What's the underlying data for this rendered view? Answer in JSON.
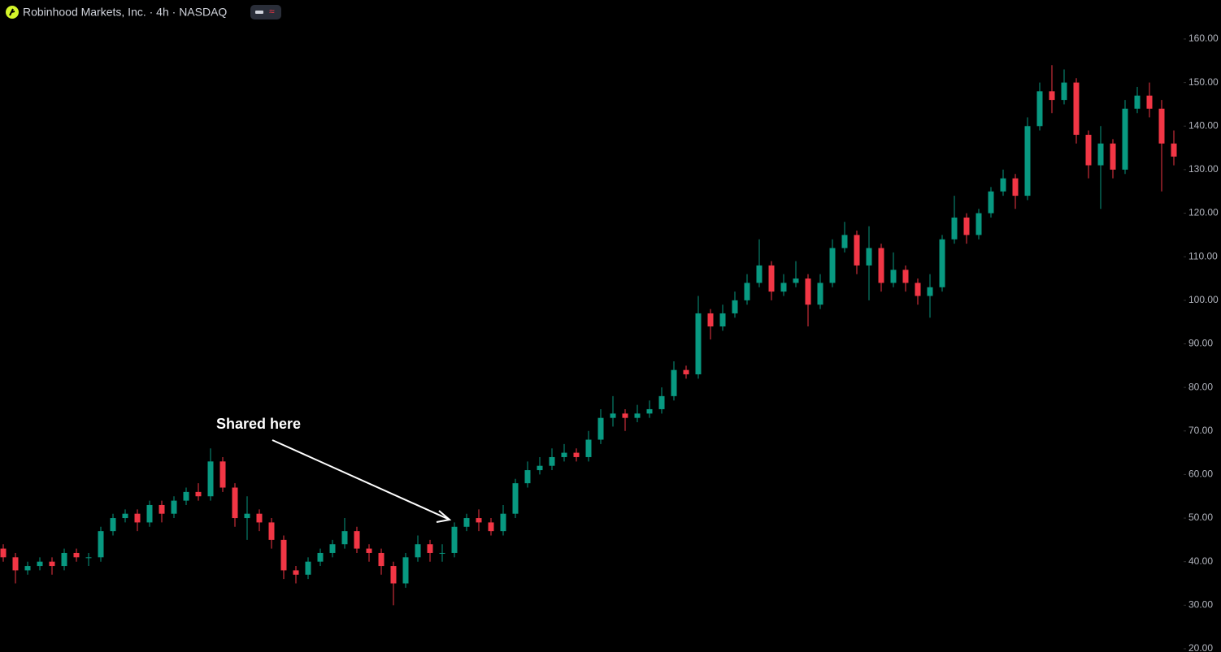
{
  "chart_data": {
    "type": "candlestick",
    "title": "Robinhood Markets, Inc. · 4h · NASDAQ",
    "annotation": "Shared here",
    "up_color": "#089981",
    "down_color": "#f23645",
    "ylim": [
      19.25,
      168.95
    ],
    "yticks": [
      {
        "value": 20,
        "label": "20.00"
      },
      {
        "value": 30,
        "label": "30.00"
      },
      {
        "value": 40,
        "label": "40.00"
      },
      {
        "value": 50,
        "label": "50.00"
      },
      {
        "value": 60,
        "label": "60.00"
      },
      {
        "value": 70,
        "label": "70.00"
      },
      {
        "value": 80,
        "label": "80.00"
      },
      {
        "value": 90,
        "label": "90.00"
      },
      {
        "value": 100,
        "label": "100.00"
      },
      {
        "value": 110,
        "label": "110.00"
      },
      {
        "value": 120,
        "label": "120.00"
      },
      {
        "value": 130,
        "label": "130.00"
      },
      {
        "value": 140,
        "label": "140.00"
      },
      {
        "value": 150,
        "label": "150.00"
      },
      {
        "value": 160,
        "label": "160.00"
      }
    ],
    "open": [
      43,
      41,
      38,
      39,
      40,
      39,
      42,
      41,
      41,
      47,
      50,
      51,
      49,
      53,
      51,
      54,
      56,
      55,
      63,
      57,
      50,
      51,
      49,
      45,
      38,
      37,
      40,
      42,
      44,
      47,
      43,
      42,
      39,
      35,
      41,
      44,
      42,
      42,
      48,
      50,
      49,
      47,
      51,
      58,
      61,
      62,
      64,
      65,
      64,
      68,
      73,
      74,
      73,
      74,
      75,
      78,
      84,
      83,
      97,
      94,
      97,
      100,
      104,
      108,
      102,
      104,
      105,
      99,
      104,
      112,
      115,
      108,
      112,
      104,
      107,
      104,
      101,
      103,
      114,
      119,
      115,
      120,
      125,
      128,
      124,
      140,
      148,
      146,
      150,
      138,
      131,
      136,
      130,
      144,
      147,
      144,
      136
    ],
    "high": [
      44,
      42,
      40,
      41,
      41,
      43,
      43,
      42,
      48,
      51,
      52,
      52,
      54,
      54,
      55,
      57,
      58,
      66,
      64,
      58,
      55,
      52,
      50,
      46,
      39,
      41,
      43,
      45,
      50,
      48,
      44,
      43,
      40,
      42,
      46,
      45,
      44,
      49,
      51,
      52,
      50,
      53,
      59,
      63,
      64,
      66,
      67,
      66,
      70,
      75,
      78,
      75,
      76,
      77,
      80,
      86,
      85,
      101,
      98,
      99,
      102,
      106,
      114,
      109,
      106,
      109,
      106,
      106,
      114,
      118,
      116,
      117,
      113,
      111,
      108,
      105,
      106,
      115,
      124,
      120,
      121,
      126,
      130,
      129,
      142,
      150,
      154,
      153,
      151,
      139,
      140,
      137,
      146,
      149,
      150,
      146,
      139
    ],
    "low": [
      40,
      35,
      37,
      38,
      37,
      38,
      40,
      39,
      40,
      46,
      49,
      47,
      48,
      49,
      50,
      53,
      54,
      54,
      56,
      48,
      45,
      47,
      43,
      36,
      35,
      36,
      39,
      41,
      43,
      42,
      40,
      37,
      30,
      34,
      40,
      40,
      40,
      41,
      47,
      47,
      46,
      46,
      50,
      57,
      60,
      61,
      63,
      63,
      63,
      67,
      71,
      70,
      72,
      73,
      74,
      77,
      82,
      82,
      91,
      93,
      96,
      99,
      103,
      100,
      101,
      103,
      94,
      98,
      103,
      111,
      106,
      100,
      102,
      103,
      102,
      99,
      96,
      102,
      113,
      113,
      114,
      119,
      124,
      121,
      123,
      139,
      143,
      145,
      136,
      128,
      121,
      128,
      129,
      143,
      142,
      125,
      131
    ],
    "close": [
      41,
      38,
      39,
      40,
      39,
      42,
      41,
      41,
      47,
      50,
      51,
      49,
      53,
      51,
      54,
      56,
      55,
      63,
      57,
      50,
      51,
      49,
      45,
      38,
      37,
      40,
      42,
      44,
      47,
      43,
      42,
      39,
      35,
      41,
      44,
      42,
      42,
      48,
      50,
      49,
      47,
      51,
      58,
      61,
      62,
      64,
      65,
      64,
      68,
      73,
      74,
      73,
      74,
      75,
      78,
      84,
      83,
      97,
      94,
      97,
      100,
      104,
      108,
      102,
      104,
      105,
      99,
      104,
      112,
      115,
      108,
      112,
      104,
      107,
      104,
      101,
      103,
      114,
      119,
      115,
      120,
      125,
      128,
      124,
      140,
      148,
      146,
      150,
      138,
      131,
      136,
      130,
      144,
      147,
      144,
      136,
      133
    ]
  }
}
